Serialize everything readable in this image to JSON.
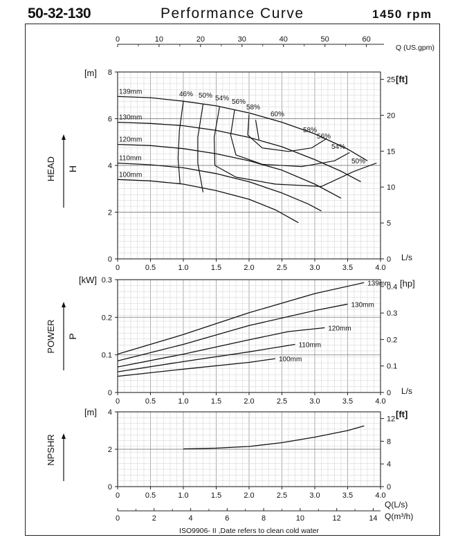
{
  "header": {
    "model": "50-32-130",
    "title": "Performance Curve",
    "speed": "1450 rpm"
  },
  "chart_data": {
    "type": "line",
    "title": "Performance Curve",
    "model": "50-32-130",
    "speed": "1450 rpm",
    "footnote": "ISO9906- II ,Date refers to clean cold water",
    "flow_axis": {
      "unit": "L/s",
      "range": [
        0,
        4.0
      ],
      "ticks": [
        "0",
        "0.5",
        "1.0",
        "1.5",
        "2.0",
        "2.5",
        "3.0",
        "3.5",
        "4.0"
      ],
      "usgpm_label": "Q (US.gpm)",
      "usgpm_ticks": [
        "0",
        "10",
        "20",
        "30",
        "40",
        "50",
        "60"
      ],
      "bottom_label": "Q(L/s)",
      "m3h_label": "Q(m³/h)",
      "m3h_ticks": [
        "0",
        "2",
        "4",
        "6",
        "8",
        "10",
        "12",
        "14"
      ]
    },
    "head": {
      "axis_label_words": [
        "HEAD",
        "H"
      ],
      "unit_left": "[m]",
      "unit_right": "[ft]",
      "ylim": [
        0,
        8
      ],
      "ticks_left": [
        "0",
        "2",
        "4",
        "6",
        "8"
      ],
      "ticks_right": [
        "0",
        "5",
        "10",
        "15",
        "20",
        "25"
      ],
      "flow_unit_label": "L/s",
      "series": [
        {
          "name": "139mm",
          "points": [
            [
              0,
              6.95
            ],
            [
              0.5,
              6.9
            ],
            [
              1.0,
              6.75
            ],
            [
              1.5,
              6.55
            ],
            [
              2.0,
              6.25
            ],
            [
              2.5,
              5.85
            ],
            [
              3.0,
              5.35
            ],
            [
              3.5,
              4.7
            ],
            [
              3.8,
              4.2
            ]
          ]
        },
        {
          "name": "130mm",
          "points": [
            [
              0,
              5.85
            ],
            [
              0.5,
              5.8
            ],
            [
              1.0,
              5.7
            ],
            [
              1.5,
              5.5
            ],
            [
              2.0,
              5.2
            ],
            [
              2.5,
              4.8
            ],
            [
              3.0,
              4.25
            ],
            [
              3.4,
              3.75
            ],
            [
              3.7,
              3.3
            ]
          ]
        },
        {
          "name": "120mm",
          "points": [
            [
              0,
              4.9
            ],
            [
              0.5,
              4.85
            ],
            [
              1.0,
              4.72
            ],
            [
              1.5,
              4.5
            ],
            [
              2.0,
              4.2
            ],
            [
              2.5,
              3.8
            ],
            [
              3.0,
              3.2
            ],
            [
              3.4,
              2.6
            ]
          ]
        },
        {
          "name": "110mm",
          "points": [
            [
              0,
              4.1
            ],
            [
              0.5,
              4.03
            ],
            [
              1.0,
              3.9
            ],
            [
              1.5,
              3.65
            ],
            [
              2.0,
              3.3
            ],
            [
              2.5,
              2.82
            ],
            [
              2.9,
              2.35
            ],
            [
              3.1,
              2.05
            ]
          ]
        },
        {
          "name": "100mm",
          "points": [
            [
              0,
              3.4
            ],
            [
              0.5,
              3.34
            ],
            [
              1.0,
              3.2
            ],
            [
              1.5,
              2.92
            ],
            [
              2.0,
              2.55
            ],
            [
              2.4,
              2.1
            ],
            [
              2.75,
              1.55
            ]
          ]
        }
      ],
      "efficiency_curves": [
        {
          "label": "46%",
          "points": [
            [
              1.0,
              6.75
            ],
            [
              0.94,
              5.5
            ],
            [
              0.92,
              4.3
            ],
            [
              0.95,
              3.2
            ]
          ]
        },
        {
          "label": "50%",
          "points": [
            [
              1.3,
              6.62
            ],
            [
              1.22,
              5.2
            ],
            [
              1.22,
              4.1
            ],
            [
              1.3,
              2.85
            ]
          ]
        },
        {
          "label": "54%",
          "points": [
            [
              1.55,
              6.5
            ],
            [
              1.47,
              5.2
            ],
            [
              1.48,
              4.0
            ],
            [
              1.8,
              3.5
            ],
            [
              2.4,
              3.2
            ],
            [
              3.1,
              3.1
            ],
            [
              3.6,
              3.75
            ],
            [
              3.94,
              4.1
            ]
          ]
        },
        {
          "label": "56%",
          "points": [
            [
              1.78,
              6.38
            ],
            [
              1.72,
              5.3
            ],
            [
              1.8,
              4.45
            ],
            [
              2.2,
              4.05
            ],
            [
              2.8,
              3.95
            ],
            [
              3.3,
              4.2
            ],
            [
              3.53,
              4.55
            ]
          ]
        },
        {
          "label": "58%",
          "points": [
            [
              2.0,
              6.2
            ],
            [
              1.98,
              5.3
            ],
            [
              2.2,
              4.75
            ],
            [
              2.6,
              4.6
            ],
            [
              2.95,
              4.75
            ],
            [
              3.18,
              5.15
            ]
          ]
        },
        {
          "label": "60%",
          "points": [
            [
              2.1,
              5.95
            ],
            [
              2.15,
              5.1
            ]
          ]
        }
      ],
      "efficiency_top_labels": [
        "46%",
        "50%",
        "54%",
        "56%",
        "58%",
        "60%"
      ],
      "efficiency_right_labels": [
        "58%",
        "56%",
        "54%",
        "50%"
      ]
    },
    "power": {
      "axis_label_words": [
        "POWER",
        "P"
      ],
      "unit_left": "[kW]",
      "unit_right": "[hp]",
      "ylim": [
        0,
        0.3
      ],
      "ticks_left": [
        "0",
        "0.1",
        "0.2",
        "0.3"
      ],
      "ticks_right": [
        "0",
        "0.1",
        "0.2",
        "0.3",
        "0.4"
      ],
      "flow_unit_label": "L/s",
      "series": [
        {
          "name": "139mm",
          "points": [
            [
              0,
              0.102
            ],
            [
              1.0,
              0.154
            ],
            [
              2.0,
              0.212
            ],
            [
              3.0,
              0.263
            ],
            [
              3.75,
              0.292
            ]
          ]
        },
        {
          "name": "130mm",
          "points": [
            [
              0,
              0.084
            ],
            [
              1.0,
              0.128
            ],
            [
              2.0,
              0.178
            ],
            [
              3.0,
              0.218
            ],
            [
              3.5,
              0.235
            ]
          ]
        },
        {
          "name": "120mm",
          "points": [
            [
              0,
              0.068
            ],
            [
              1.0,
              0.102
            ],
            [
              2.0,
              0.14
            ],
            [
              2.6,
              0.162
            ],
            [
              3.15,
              0.172
            ]
          ]
        },
        {
          "name": "110mm",
          "points": [
            [
              0,
              0.055
            ],
            [
              1.0,
              0.082
            ],
            [
              2.0,
              0.108
            ],
            [
              2.7,
              0.128
            ]
          ]
        },
        {
          "name": "100mm",
          "points": [
            [
              0,
              0.043
            ],
            [
              1.0,
              0.062
            ],
            [
              2.0,
              0.08
            ],
            [
              2.4,
              0.09
            ]
          ]
        }
      ]
    },
    "npshr": {
      "axis_label_words": [
        "NPSHR"
      ],
      "unit_left": "[m]",
      "unit_right": "[ft]",
      "ylim": [
        0,
        4
      ],
      "ticks_left": [
        "0",
        "2",
        "4"
      ],
      "ticks_right": [
        "0",
        "4",
        "8",
        "12"
      ],
      "series": [
        {
          "name": "NPSHR",
          "points": [
            [
              1.0,
              2.02
            ],
            [
              1.5,
              2.06
            ],
            [
              2.0,
              2.15
            ],
            [
              2.5,
              2.35
            ],
            [
              3.0,
              2.65
            ],
            [
              3.5,
              3.0
            ],
            [
              3.75,
              3.25
            ]
          ]
        }
      ]
    }
  }
}
